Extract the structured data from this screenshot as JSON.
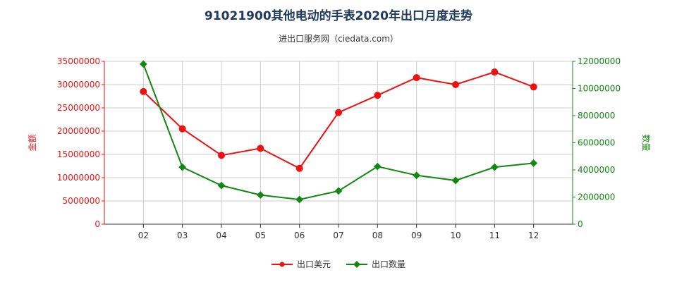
{
  "chart_data": {
    "type": "line",
    "title": "91021900其他电动的手表2020年出口月度走势",
    "subtitle": "进出口服务网（ciedata.com）",
    "categories": [
      "02",
      "03",
      "04",
      "05",
      "06",
      "07",
      "08",
      "09",
      "10",
      "11",
      "12"
    ],
    "y_left": {
      "label": "金额",
      "ylim": [
        0,
        35000000
      ],
      "ticks": [
        "0",
        "5000000",
        "10000000",
        "15000000",
        "20000000",
        "25000000",
        "30000000",
        "35000000"
      ]
    },
    "y_right": {
      "label": "数量",
      "ylim": [
        0,
        12000000
      ],
      "ticks": [
        "0",
        "2000000",
        "4000000",
        "6000000",
        "8000000",
        "10000000",
        "12000000"
      ]
    },
    "series": [
      {
        "name": "出口美元",
        "axis": "left",
        "color": "#ee1111",
        "values": [
          28500000,
          20500000,
          14800000,
          16300000,
          12000000,
          24000000,
          27700000,
          31500000,
          30000000,
          32700000,
          29500000
        ]
      },
      {
        "name": "出口数量",
        "axis": "right",
        "color": "#118811",
        "values": [
          11800000,
          4200000,
          2850000,
          2150000,
          1820000,
          2450000,
          4250000,
          3600000,
          3220000,
          4200000,
          4500000
        ]
      }
    ],
    "legend_position": "bottom-center",
    "grid": true
  }
}
